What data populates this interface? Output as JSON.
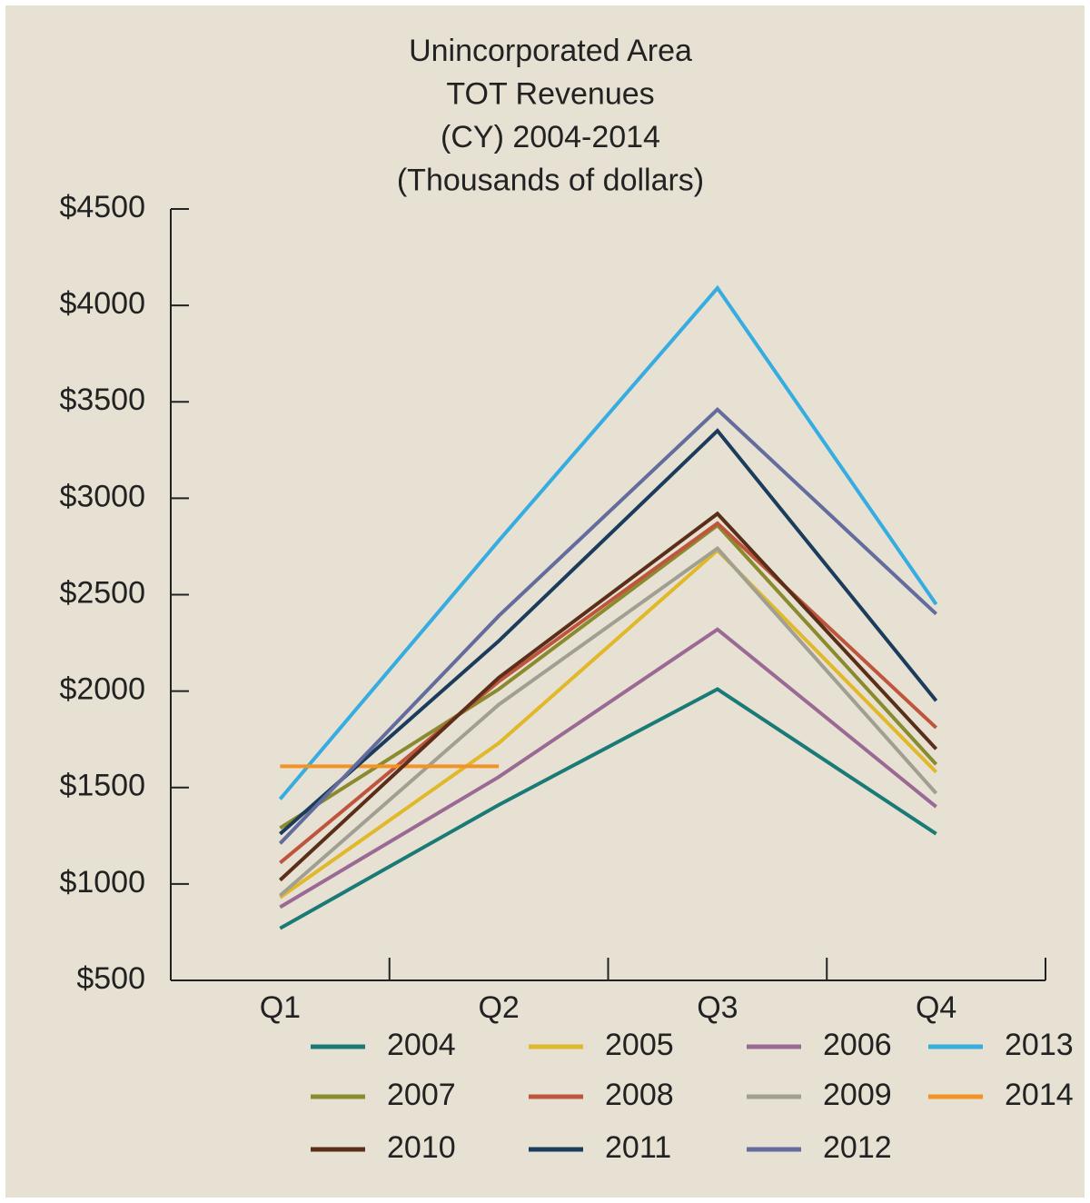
{
  "chart_data": {
    "type": "line",
    "title": [
      "Unincorporated Area",
      "TOT Revenues",
      "(CY) 2004-2014",
      "(Thousands of dollars)"
    ],
    "categories": [
      "Q1",
      "Q2",
      "Q3",
      "Q4"
    ],
    "series": [
      {
        "name": "2004",
        "color": "#1a7a76",
        "values": [
          770,
          1410,
          2010,
          1260
        ]
      },
      {
        "name": "2005",
        "color": "#e0b82a",
        "values": [
          930,
          1730,
          2730,
          1580
        ]
      },
      {
        "name": "2006",
        "color": "#9b6a94",
        "values": [
          880,
          1555,
          2320,
          1400
        ]
      },
      {
        "name": "2013",
        "color": "#36ace1",
        "values": [
          1440,
          2780,
          4090,
          2450
        ]
      },
      {
        "name": "2007",
        "color": "#8a8a2e",
        "values": [
          1290,
          2010,
          2860,
          1620
        ]
      },
      {
        "name": "2008",
        "color": "#c0553e",
        "values": [
          1110,
          2050,
          2870,
          1810
        ]
      },
      {
        "name": "2009",
        "color": "#a09f92",
        "values": [
          940,
          1930,
          2740,
          1470
        ]
      },
      {
        "name": "2014",
        "color": "#f39325",
        "values": [
          1610,
          1610,
          null,
          null
        ]
      },
      {
        "name": "2010",
        "color": "#5a2e19",
        "values": [
          1020,
          2070,
          2920,
          1700
        ]
      },
      {
        "name": "2011",
        "color": "#1b3c5c",
        "values": [
          1260,
          2260,
          3350,
          1950
        ]
      },
      {
        "name": "2012",
        "color": "#636c9c",
        "values": [
          1210,
          2390,
          3460,
          2400
        ]
      }
    ],
    "ylim": [
      500,
      4500
    ],
    "yticks": [
      {
        "value": 500,
        "label": "$500"
      },
      {
        "value": 1000,
        "label": "$1000"
      },
      {
        "value": 1500,
        "label": "$1500"
      },
      {
        "value": 2000,
        "label": "$2000"
      },
      {
        "value": 2500,
        "label": "$2500"
      },
      {
        "value": 3000,
        "label": "$3000"
      },
      {
        "value": 3500,
        "label": "$3500"
      },
      {
        "value": 4000,
        "label": "$4000"
      },
      {
        "value": 4500,
        "label": "$4500"
      }
    ],
    "grid": false
  }
}
